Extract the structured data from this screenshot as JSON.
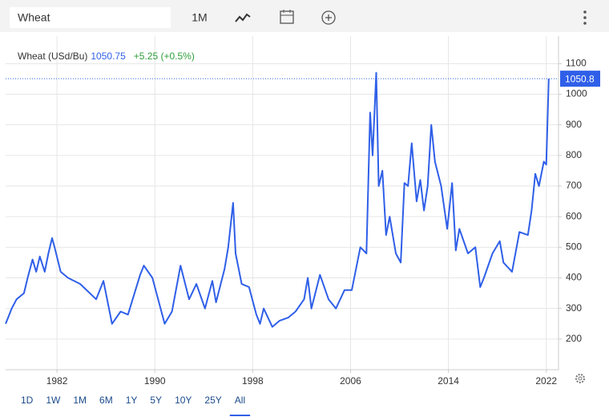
{
  "toolbar": {
    "search": "Wheat",
    "interval": "1M"
  },
  "chart_data": {
    "type": "line",
    "title": "Wheat (USd/Bu)",
    "last": "1050.75",
    "change": "+5.25 (+0.5%)",
    "last_value": 1050.8,
    "series": [
      {
        "name": "Wheat",
        "color": "#2f5fe8",
        "x": [
          1977.8,
          1978.0,
          1978.3,
          1978.7,
          1979.3,
          1979.6,
          1980.0,
          1980.3,
          1980.6,
          1981.0,
          1981.3,
          1981.6,
          1981.8,
          1982.3,
          1982.9,
          1983.9,
          1985.2,
          1985.8,
          1986.5,
          1987.2,
          1987.8,
          1988.8,
          1989.1,
          1989.8,
          1990.8,
          1991.4,
          1992.1,
          1992.8,
          1993.4,
          1994.1,
          1994.7,
          1995.0,
          1995.7,
          1996.0,
          1996.4,
          1996.6,
          1997.1,
          1997.7,
          1998.3,
          1998.6,
          1998.9,
          1999.6,
          2000.2,
          2000.9,
          2001.5,
          2002.2,
          2002.5,
          2002.8,
          2003.5,
          2004.2,
          2004.8,
          2005.5,
          2006.1,
          2006.8,
          2007.3,
          2007.6,
          2007.8,
          2008.1,
          2008.3,
          2008.6,
          2008.9,
          2009.2,
          2009.7,
          2010.1,
          2010.4,
          2010.7,
          2011.0,
          2011.4,
          2011.7,
          2012.0,
          2012.3,
          2012.6,
          2012.9,
          2013.4,
          2013.9,
          2014.3,
          2014.6,
          2014.9,
          2015.6,
          2016.2,
          2016.6,
          2016.9,
          2017.6,
          2018.2,
          2018.5,
          2019.2,
          2019.8,
          2020.5,
          2020.8,
          2021.1,
          2021.4,
          2021.8,
          2022.0,
          2022.2
        ],
        "values": [
          250,
          270,
          300,
          330,
          350,
          400,
          460,
          420,
          470,
          420,
          480,
          530,
          500,
          420,
          400,
          380,
          330,
          390,
          250,
          290,
          280,
          410,
          440,
          400,
          250,
          290,
          440,
          330,
          380,
          300,
          390,
          320,
          430,
          500,
          645,
          480,
          380,
          370,
          280,
          250,
          300,
          240,
          260,
          270,
          290,
          330,
          400,
          300,
          410,
          330,
          300,
          360,
          360,
          500,
          480,
          940,
          800,
          1070,
          700,
          750,
          540,
          600,
          480,
          450,
          710,
          700,
          840,
          650,
          720,
          620,
          700,
          900,
          780,
          700,
          560,
          710,
          490,
          560,
          480,
          500,
          370,
          400,
          480,
          520,
          450,
          420,
          550,
          540,
          620,
          740,
          700,
          780,
          770,
          1050.75
        ]
      }
    ],
    "xlim": [
      1977.8,
      2023.0
    ],
    "ylim": [
      100,
      1190
    ],
    "xticks": [
      1982,
      1990,
      1998,
      2006,
      2014,
      2022
    ],
    "yticks": [
      200,
      300,
      400,
      500,
      600,
      700,
      800,
      900,
      1000,
      1100
    ],
    "grid": true
  },
  "ranges": {
    "buttons": [
      "1D",
      "1W",
      "1M",
      "6M",
      "1Y",
      "5Y",
      "10Y",
      "25Y",
      "All"
    ],
    "active": 8
  }
}
